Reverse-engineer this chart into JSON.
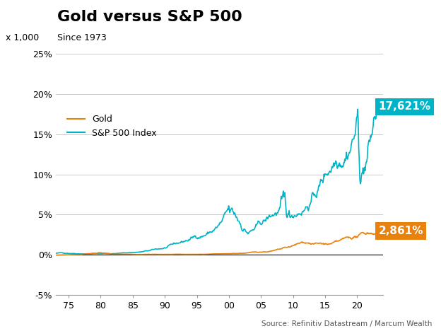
{
  "title": "Gold versus S&P 500",
  "subtitle": "Since 1973",
  "ylabel_left": "x 1,000",
  "source": "Source: Refinitiv Datastream / Marcum Wealth",
  "ylim": [
    -0.05,
    0.25
  ],
  "yticks": [
    -0.05,
    0.0,
    0.05,
    0.1,
    0.15,
    0.2,
    0.25
  ],
  "ytick_labels": [
    "-5%",
    "0%",
    "5%",
    "10%",
    "15%",
    "20%",
    "25%"
  ],
  "xtick_labels": [
    "75",
    "80",
    "85",
    "90",
    "95",
    "00",
    "05",
    "10",
    "15",
    "20"
  ],
  "gold_label": "Gold",
  "sp500_label": "S&P 500 Index",
  "gold_color": "#E8820C",
  "sp500_color": "#00B4C8",
  "gold_end_pct": "2,861%",
  "sp500_end_pct": "17,621%",
  "gold_annotation_color": "#E8820C",
  "sp500_annotation_color": "#00B4C8",
  "background_color": "#ffffff",
  "grid_color": "#cccccc",
  "title_fontsize": 16,
  "subtitle_fontsize": 10,
  "label_fontsize": 10,
  "annotation_fontsize": 11
}
